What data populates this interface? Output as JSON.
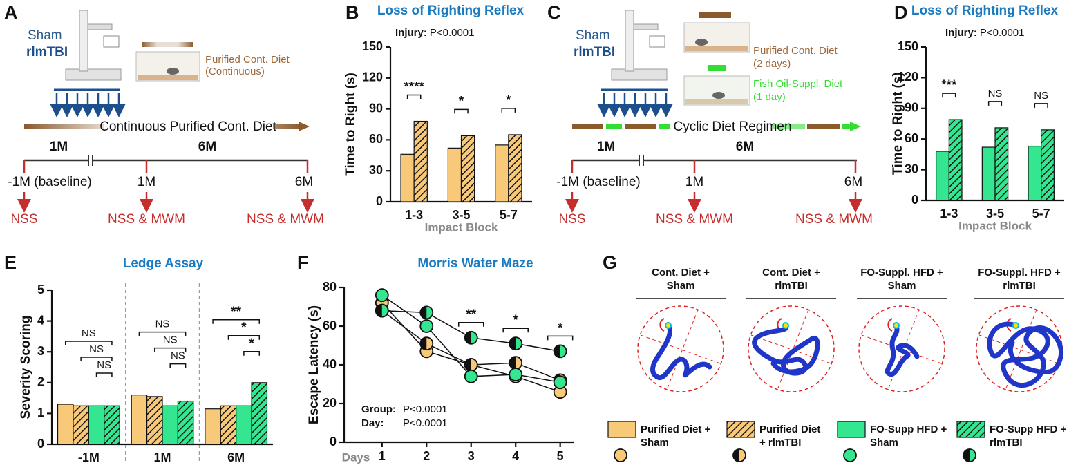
{
  "panel_labels": [
    "A",
    "B",
    "C",
    "D",
    "E",
    "F",
    "G"
  ],
  "diagram_a": {
    "groups": [
      "Sham",
      "rlmTBI"
    ],
    "diet_label": [
      "Purified Cont. Diet",
      "(Continuous)"
    ],
    "regimen": "Continuous Purified Cont. Diet",
    "periods": [
      "1M",
      "6M"
    ],
    "timepoints": [
      "-1M (baseline)",
      "1M",
      "6M"
    ],
    "tests": [
      "NSS",
      "NSS & MWM",
      "NSS & MWM"
    ]
  },
  "diagram_c": {
    "groups": [
      "Sham",
      "rlmTBI"
    ],
    "diets": [
      [
        "Purified Cont. Diet",
        "(2 days)"
      ],
      [
        "Fish Oil-Suppl. Diet",
        "(1 day)"
      ]
    ],
    "regimen": "Cyclic Diet Regimen",
    "periods": [
      "1M",
      "6M"
    ],
    "timepoints": [
      "-1M (baseline)",
      "1M",
      "6M"
    ],
    "tests": [
      "NSS",
      "NSS & MWM",
      "NSS & MWM"
    ]
  },
  "chart_data": [
    {
      "type": "bar",
      "title": "Loss of Righting Reflex",
      "y_label": "Time to Right (s)",
      "x_label": "Impact Block",
      "stats": [
        {
          "label": "Injury:",
          "value": "P<0.0001"
        }
      ],
      "categories": [
        "1-3",
        "3-5",
        "5-7"
      ],
      "series": [
        {
          "color": "#f9c97a",
          "pattern": "solid",
          "values": [
            46,
            52,
            55
          ]
        },
        {
          "color": "#f9c97a",
          "pattern": "hatch",
          "values": [
            78,
            64,
            65
          ]
        }
      ],
      "significance": [
        "****",
        "*",
        "*"
      ],
      "ylim": [
        0,
        150
      ],
      "yticks": [
        0,
        30,
        60,
        90,
        120,
        150
      ]
    },
    {
      "type": "bar",
      "title": "Loss of Righting Reflex",
      "y_label": "Time to Right (s)",
      "x_label": "Impact Block",
      "stats": [
        {
          "label": "Injury:",
          "value": "P<0.0001"
        }
      ],
      "categories": [
        "1-3",
        "3-5",
        "5-7"
      ],
      "series": [
        {
          "color": "#33e68f",
          "pattern": "solid",
          "values": [
            48,
            52,
            53
          ]
        },
        {
          "color": "#33e68f",
          "pattern": "hatch",
          "values": [
            79,
            71,
            69
          ]
        }
      ],
      "significance": [
        "***",
        "NS",
        "NS"
      ],
      "ylim": [
        0,
        150
      ],
      "yticks": [
        0,
        30,
        60,
        90,
        120,
        150
      ]
    },
    {
      "type": "bar",
      "title": "Ledge Assay",
      "y_label": "Severity Scoring",
      "group_separators": true,
      "categories": [
        "-1M",
        "1M",
        "6M"
      ],
      "series": [
        {
          "color": "#f9c97a",
          "pattern": "solid",
          "values": [
            1.3,
            1.6,
            1.15
          ]
        },
        {
          "color": "#f9c97a",
          "pattern": "hatch",
          "values": [
            1.25,
            1.55,
            1.25
          ]
        },
        {
          "color": "#33e68f",
          "pattern": "solid",
          "values": [
            1.25,
            1.25,
            1.25
          ]
        },
        {
          "color": "#33e68f",
          "pattern": "hatch",
          "values": [
            1.25,
            1.4,
            2.0
          ]
        }
      ],
      "significance": [
        [
          "NS",
          "NS",
          "NS"
        ],
        [
          "NS",
          "NS",
          "NS"
        ],
        [
          "**",
          "*",
          "*"
        ]
      ],
      "ylim": [
        0,
        5
      ],
      "yticks": [
        0,
        1,
        2,
        3,
        4,
        5
      ]
    },
    {
      "type": "line",
      "title": "Morris Water Maze",
      "y_label": "Escape Latency (s)",
      "x_label": "Days",
      "stats": [
        {
          "label": "Group:",
          "value": "P<0.0001"
        },
        {
          "label": "Day:",
          "value": "P<0.0001"
        }
      ],
      "x": [
        1,
        2,
        3,
        4,
        5
      ],
      "series": [
        {
          "color": "#f9c97a",
          "marker": "full",
          "values": [
            72,
            47,
            40,
            34,
            26
          ]
        },
        {
          "color": "#f9c97a",
          "marker": "half",
          "values": [
            68,
            51,
            40,
            41,
            32
          ]
        },
        {
          "color": "#33e68f",
          "marker": "full",
          "values": [
            76,
            60,
            34,
            35,
            31
          ]
        },
        {
          "color": "#33e68f",
          "marker": "half",
          "values": [
            68,
            67,
            54,
            51,
            47
          ]
        }
      ],
      "significance": [
        null,
        null,
        "**",
        "*",
        "*"
      ],
      "xlim": [
        0.15,
        5.3
      ],
      "xticks": [
        1,
        2,
        3,
        4,
        5
      ],
      "ylim": [
        0,
        80
      ],
      "yticks": [
        0,
        20,
        40,
        60,
        80
      ]
    }
  ],
  "panel_g": {
    "titles": [
      [
        "Cont. Diet  +",
        "Sham"
      ],
      [
        "Cont. Diet  +",
        "rlmTBI"
      ],
      [
        "FO-Suppl. HFD +",
        "Sham"
      ],
      [
        "FO-Suppl. HFD +",
        "rlmTBI"
      ]
    ],
    "legend": [
      {
        "lines": [
          "Purified Diet +",
          "Sham"
        ],
        "color": "#f9c97a",
        "pattern": "solid",
        "marker": "full"
      },
      {
        "lines": [
          "Purified Diet",
          "+ rlmTBI"
        ],
        "color": "#f9c97a",
        "pattern": "hatch",
        "marker": "half"
      },
      {
        "lines": [
          "FO-Supp HFD +",
          "Sham"
        ],
        "color": "#33e68f",
        "pattern": "solid",
        "marker": "full"
      },
      {
        "lines": [
          "FO-Supp HFD +",
          "rlmTBI"
        ],
        "color": "#33e68f",
        "pattern": "hatch",
        "marker": "half"
      }
    ]
  }
}
